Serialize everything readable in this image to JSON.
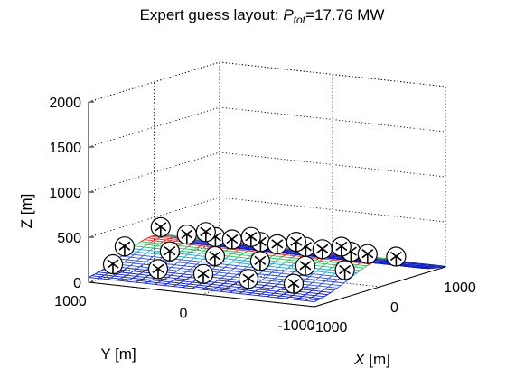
{
  "chart_data": {
    "type": "surface",
    "title_main": "Expert guess layout: ",
    "title_sym": "P",
    "title_sub": "tot",
    "title_value": "=17.76 MW",
    "xlabel_var": "X",
    "xlabel_unit": " [m]",
    "ylabel": "Y [m]",
    "zlabel": "Z [m]",
    "xlim": [
      -1000,
      1000
    ],
    "ylim": [
      -1000,
      1000
    ],
    "zlim": [
      0,
      2000
    ],
    "x_ticks": [
      "-1000",
      "0",
      "1000"
    ],
    "y_ticks": [
      "-1000",
      "0",
      "1000"
    ],
    "z_ticks": [
      "0",
      "500",
      "1000",
      "1500",
      "2000"
    ],
    "grid": true,
    "surface": {
      "description_free": true,
      "ridge_axis": "x",
      "ridge_peak_height": 300,
      "colormap": [
        "#1020c0",
        "#3050e0",
        "#20a8d0",
        "#30c060",
        "#e03030"
      ]
    },
    "turbines": [
      {
        "x": -800,
        "y": 900
      },
      {
        "x": -800,
        "y": 500
      },
      {
        "x": -800,
        "y": 100
      },
      {
        "x": -800,
        "y": -300
      },
      {
        "x": -800,
        "y": -700
      },
      {
        "x": -450,
        "y": 1000
      },
      {
        "x": -450,
        "y": 600
      },
      {
        "x": -450,
        "y": 200
      },
      {
        "x": -450,
        "y": -200
      },
      {
        "x": -450,
        "y": -600
      },
      {
        "x": -450,
        "y": -950
      },
      {
        "x": 100,
        "y": 1000
      },
      {
        "x": 100,
        "y": 600
      },
      {
        "x": 100,
        "y": 200
      },
      {
        "x": 100,
        "y": -200
      },
      {
        "x": 100,
        "y": -600
      },
      {
        "x": 500,
        "y": 1000
      },
      {
        "x": 500,
        "y": 600
      },
      {
        "x": 500,
        "y": 200
      },
      {
        "x": 500,
        "y": -200
      },
      {
        "x": 500,
        "y": -600
      },
      {
        "x": 850,
        "y": 950
      },
      {
        "x": 850,
        "y": 550
      },
      {
        "x": 850,
        "y": 150
      },
      {
        "x": 850,
        "y": -250
      },
      {
        "x": 850,
        "y": -650
      }
    ]
  }
}
